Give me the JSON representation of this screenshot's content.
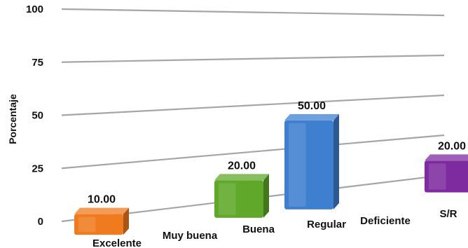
{
  "chart_data": {
    "type": "bar",
    "categories": [
      "Excelente",
      "Muy buena",
      "Buena",
      "Regular",
      "Deficiente",
      "S/R"
    ],
    "values": [
      10.0,
      0,
      20.0,
      50.0,
      0,
      20.0
    ],
    "data_labels": [
      "10.00",
      "",
      "20.00",
      "50.00",
      "",
      "20.00"
    ],
    "colors": [
      "#f07a1e",
      "#f07a1e",
      "#5fa82a",
      "#3f7fd0",
      "#7e2ba0",
      "#7e2ba0"
    ],
    "ylabel": "Porcentaje",
    "xlabel": "",
    "title": "",
    "ylim": [
      0,
      100
    ],
    "yticks": [
      "0",
      "25",
      "50",
      "75",
      "100"
    ],
    "grid": true,
    "legend": "none"
  }
}
